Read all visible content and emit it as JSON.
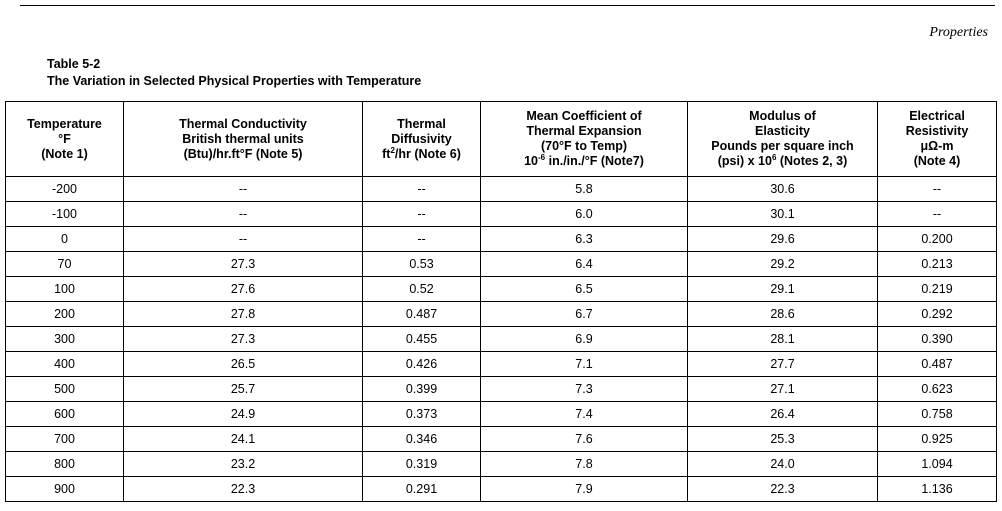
{
  "running_head": "Properties",
  "table_number": "Table 5-2",
  "table_title": "The Variation in Selected Physical Properties with Temperature",
  "headers": {
    "temp": [
      "Temperature",
      "°F",
      "(Note 1)"
    ],
    "conductivity": [
      "Thermal Conductivity",
      "British thermal units",
      "(Btu)/hr.ft°F (Note 5)"
    ],
    "diffusivity": {
      "l1": "Thermal",
      "l2": "Diffusivity",
      "l3_base": "ft",
      "l3_sup": "2",
      "l3_rest": "/hr (Note 6)"
    },
    "expansion": {
      "l1": "Mean Coefficient of",
      "l2": "Thermal Expansion",
      "l3": "(70°F to Temp)",
      "l4_base": "10",
      "l4_sup": "-6",
      "l4_rest": " in./in./°F (Note7)"
    },
    "modulus": {
      "l1": "Modulus of",
      "l2": "Elasticity",
      "l3": "Pounds per square inch",
      "l4_base": "(psi) x 10",
      "l4_sup": "6",
      "l4_rest": " (Notes 2, 3)"
    },
    "resistivity": [
      "Electrical",
      "Resistivity",
      "μΩ-m",
      "(Note 4)"
    ]
  },
  "rows": [
    [
      "-200",
      "--",
      "--",
      "5.8",
      "30.6",
      "--"
    ],
    [
      "-100",
      "--",
      "--",
      "6.0",
      "30.1",
      "--"
    ],
    [
      "0",
      "--",
      "--",
      "6.3",
      "29.6",
      "0.200"
    ],
    [
      "70",
      "27.3",
      "0.53",
      "6.4",
      "29.2",
      "0.213"
    ],
    [
      "100",
      "27.6",
      "0.52",
      "6.5",
      "29.1",
      "0.219"
    ],
    [
      "200",
      "27.8",
      "0.487",
      "6.7",
      "28.6",
      "0.292"
    ],
    [
      "300",
      "27.3",
      "0.455",
      "6.9",
      "28.1",
      "0.390"
    ],
    [
      "400",
      "26.5",
      "0.426",
      "7.1",
      "27.7",
      "0.487"
    ],
    [
      "500",
      "25.7",
      "0.399",
      "7.3",
      "27.1",
      "0.623"
    ],
    [
      "600",
      "24.9",
      "0.373",
      "7.4",
      "26.4",
      "0.758"
    ],
    [
      "700",
      "24.1",
      "0.346",
      "7.6",
      "25.3",
      "0.925"
    ],
    [
      "800",
      "23.2",
      "0.319",
      "7.8",
      "24.0",
      "1.094"
    ],
    [
      "900",
      "22.3",
      "0.291",
      "7.9",
      "22.3",
      "1.136"
    ]
  ]
}
